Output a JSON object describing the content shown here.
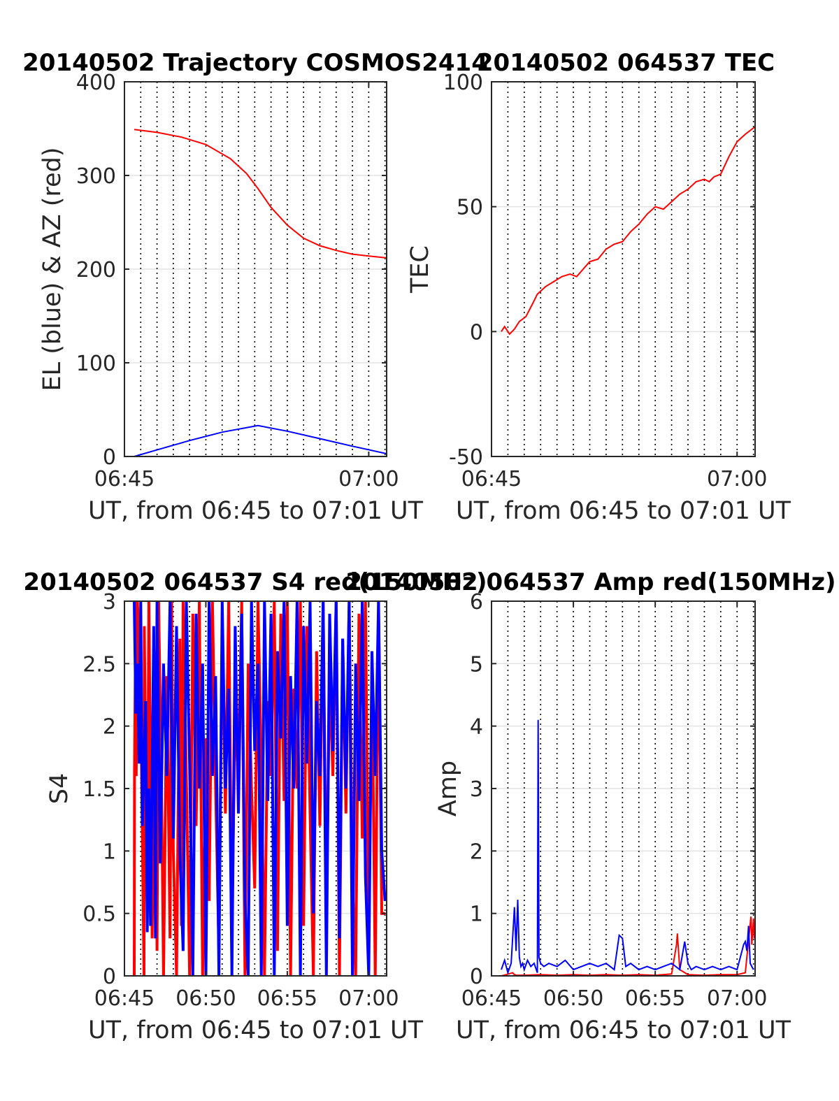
{
  "chart_data": [
    {
      "type": "line",
      "title": "20140502 Trajectory COSMOS2414",
      "xlabel": "UT, from 06:45 to 07:01 UT",
      "ylabel": "EL (blue) & AZ (red)",
      "xlim": [
        0,
        16.1
      ],
      "ylim": [
        0,
        400
      ],
      "yticks": [
        0,
        100,
        200,
        300,
        400
      ],
      "ytick_labels": [
        "0",
        "100",
        "200",
        "300",
        "400"
      ],
      "xticks": [
        0,
        15
      ],
      "xtick_labels": [
        "06:45",
        "07:00"
      ],
      "minute_gridlines": true,
      "series": [
        {
          "color": "#ff0000",
          "x": [
            0.6,
            2,
            3.5,
            5,
            6.5,
            7.5,
            8.2,
            9,
            10,
            11,
            12,
            13,
            14,
            15,
            16.1
          ],
          "values": [
            349,
            346,
            341,
            333,
            318,
            302,
            286,
            266,
            247,
            233,
            225,
            220,
            216,
            214,
            212
          ]
        },
        {
          "color": "#0000ff",
          "x": [
            0.6,
            2,
            4,
            6,
            8.2,
            10,
            12,
            14,
            16.1
          ],
          "values": [
            0,
            7,
            17,
            26,
            33,
            27,
            19,
            11,
            3
          ]
        }
      ]
    },
    {
      "type": "line",
      "title": "20140502 064537 TEC",
      "xlabel": "UT, from 06:45 to 07:01 UT",
      "ylabel": "TEC",
      "xlim": [
        0,
        16.1
      ],
      "ylim": [
        -50,
        100
      ],
      "yticks": [
        -50,
        0,
        50,
        100
      ],
      "ytick_labels": [
        "-50",
        "0",
        "50",
        "100"
      ],
      "xticks": [
        0,
        15
      ],
      "xtick_labels": [
        "06:45",
        "07:00"
      ],
      "minute_gridlines": true,
      "series": [
        {
          "color": "#ff0000",
          "x": [
            0.6,
            0.8,
            1.1,
            1.4,
            1.7,
            2.1,
            2.5,
            2.8,
            3.3,
            3.8,
            4.3,
            4.8,
            5.2,
            5.6,
            6.0,
            6.5,
            7.0,
            7.5,
            8.0,
            8.5,
            9.0,
            9.5,
            10.0,
            10.5,
            11.0,
            11.5,
            12.0,
            12.5,
            13.0,
            13.3,
            13.6,
            14.0,
            14.5,
            15.0,
            15.5,
            16.1
          ],
          "values": [
            0,
            2,
            -1,
            1,
            4,
            6,
            11,
            15,
            18,
            20,
            22,
            23,
            22,
            25,
            28,
            29,
            33,
            35,
            36,
            40,
            43,
            47,
            50,
            49,
            52,
            55,
            57,
            60,
            61,
            60,
            62,
            63,
            70,
            76,
            79,
            82
          ]
        }
      ]
    },
    {
      "type": "line",
      "title": "20140502 064537 S4 red(150MHz)",
      "xlabel": "UT, from 06:45 to 07:01 UT",
      "ylabel": "S4",
      "xlim": [
        0,
        16.1
      ],
      "ylim": [
        0,
        3
      ],
      "yticks": [
        0,
        0.5,
        1,
        1.5,
        2,
        2.5,
        3
      ],
      "ytick_labels": [
        "0",
        "0.5",
        "1",
        "1.5",
        "2",
        "2.5",
        "3"
      ],
      "xticks": [
        0,
        5,
        10,
        15
      ],
      "xtick_labels": [
        "06:45",
        "06:50",
        "06:55",
        "07:00"
      ],
      "minute_gridlines": true,
      "series": [
        {
          "color": "#ff0000",
          "x": [
            0.6,
            0.62,
            0.7,
            0.72,
            0.8,
            1.0,
            1.2,
            1.22,
            1.4,
            1.5,
            1.7,
            1.9,
            2.0,
            2.1,
            2.3,
            2.4,
            2.6,
            2.8,
            2.9,
            3.0,
            3.2,
            3.4,
            3.5,
            3.6,
            3.8,
            4.0,
            4.2,
            4.4,
            4.6,
            4.8,
            5.0,
            5.2,
            5.4,
            5.6,
            5.8,
            6.0,
            6.2,
            6.4,
            6.6,
            6.8,
            7.0,
            7.2,
            7.4,
            7.6,
            7.8,
            8.0,
            8.2,
            8.4,
            8.6,
            8.8,
            9.0,
            9.2,
            9.4,
            9.6,
            9.8,
            10.0,
            10.2,
            10.4,
            10.6,
            10.8,
            11.0,
            11.2,
            11.4,
            11.6,
            11.8,
            12.0,
            12.2,
            12.4,
            12.6,
            12.8,
            13.0,
            13.2,
            13.4,
            13.6,
            13.8,
            14.0,
            14.2,
            14.4,
            14.6,
            14.8,
            15.0,
            15.2,
            15.4,
            15.6,
            15.8,
            16.0
          ],
          "values": [
            0,
            1.65,
            3,
            1.6,
            3,
            2.2,
            0,
            2.8,
            0.5,
            3,
            0.3,
            2.6,
            0.2,
            3,
            1.2,
            0,
            2.4,
            0.3,
            3,
            1.0,
            0,
            2.7,
            0.4,
            3,
            1.6,
            0,
            2.9,
            1.2,
            3,
            0,
            1.9,
            0.6,
            3,
            1.5,
            0.2,
            2.8,
            1.3,
            3,
            0.4,
            2.1,
            1.6,
            3,
            0,
            2.5,
            1.5,
            0.7,
            3,
            1.7,
            0,
            2.2,
            1.6,
            3,
            0.2,
            2.9,
            1.4,
            3,
            0,
            2.3,
            1.5,
            3,
            0.4,
            2.8,
            1.3,
            0,
            2.6,
            1.2,
            3,
            0.5,
            2.4,
            1.6,
            3,
            0,
            2.7,
            1.3,
            3,
            0.8,
            0,
            2.9,
            1.1,
            3,
            0.3,
            2.5,
            0,
            3,
            0.5,
            0.5
          ]
        },
        {
          "color": "#0000ff",
          "x": [
            0.6,
            0.7,
            0.8,
            0.9,
            1.0,
            1.1,
            1.3,
            1.4,
            1.5,
            1.6,
            1.8,
            1.9,
            2.0,
            2.2,
            2.4,
            2.6,
            2.8,
            3.0,
            3.2,
            3.4,
            3.6,
            3.8,
            4.0,
            4.2,
            4.4,
            4.6,
            4.8,
            5.0,
            5.2,
            5.4,
            5.6,
            5.8,
            6.0,
            6.2,
            6.4,
            6.6,
            6.8,
            7.0,
            7.2,
            7.4,
            7.6,
            7.8,
            8.0,
            8.2,
            8.4,
            8.6,
            8.8,
            9.0,
            9.2,
            9.4,
            9.6,
            9.8,
            10.0,
            10.2,
            10.4,
            10.6,
            10.8,
            11.0,
            11.2,
            11.4,
            11.6,
            11.8,
            12.0,
            12.2,
            12.4,
            12.6,
            12.8,
            13.0,
            13.2,
            13.4,
            13.6,
            13.8,
            14.0,
            14.2,
            14.4,
            14.6,
            14.8,
            15.0,
            15.2,
            15.4,
            15.6,
            15.8,
            16.0
          ],
          "values": [
            3,
            2.1,
            2.5,
            1.7,
            3,
            1.2,
            2.2,
            0.35,
            1.5,
            0.4,
            2.8,
            0.3,
            3,
            0.9,
            2.5,
            1.6,
            3,
            1.1,
            2.8,
            1.0,
            0.2,
            3,
            1.7,
            0,
            2.9,
            1.5,
            2.5,
            0,
            3,
            1.6,
            2.4,
            0,
            3,
            1.5,
            2.3,
            0,
            2.8,
            1.3,
            2.9,
            0.6,
            0,
            3,
            1.8,
            2.5,
            0,
            3,
            1.4,
            2.9,
            0,
            2.6,
            1.9,
            3,
            0.4,
            2.4,
            1.5,
            3,
            0,
            2.8,
            1.7,
            3,
            0.5,
            2.2,
            1.6,
            3,
            0,
            2.9,
            1.8,
            3,
            0.3,
            2.7,
            1.5,
            3,
            0,
            2.5,
            1.4,
            3,
            0.8,
            0,
            2.6,
            1.6,
            3,
            1.0,
            0.6
          ]
        }
      ]
    },
    {
      "type": "line",
      "title": "20140502 064537 Amp red(150MHz)",
      "xlabel": "UT, from 06:45 to 07:01 UT",
      "ylabel": "Amp",
      "xlim": [
        0,
        16.1
      ],
      "ylim": [
        0,
        6
      ],
      "yticks": [
        0,
        1,
        2,
        3,
        4,
        5,
        6
      ],
      "ytick_labels": [
        "0",
        "1",
        "2",
        "3",
        "4",
        "5",
        "6"
      ],
      "xticks": [
        0,
        5,
        10,
        15
      ],
      "xtick_labels": [
        "06:45",
        "06:50",
        "06:55",
        "07:00"
      ],
      "minute_gridlines": true,
      "series": [
        {
          "color": "#ff0000",
          "x": [
            0.6,
            0.9,
            1.3,
            1.35,
            1.5,
            2.0,
            3.0,
            4.0,
            5.0,
            6.0,
            7.0,
            8.0,
            9.0,
            10.0,
            11.0,
            11.3,
            11.35,
            11.5,
            12.0,
            13.0,
            14.0,
            15.0,
            15.5,
            15.85,
            15.9,
            16.0,
            16.05
          ],
          "values": [
            0,
            0.02,
            0.05,
            0.03,
            0.01,
            0.01,
            0.02,
            0.01,
            0.02,
            0.01,
            0.02,
            0.01,
            0.02,
            0.01,
            0.03,
            0.5,
            0.68,
            0.1,
            0.02,
            0.01,
            0.02,
            0.02,
            0.05,
            0.95,
            0.5,
            0.92,
            0.6
          ]
        },
        {
          "color": "#0000ff",
          "x": [
            0.6,
            0.8,
            1.0,
            1.2,
            1.4,
            1.5,
            1.6,
            1.7,
            1.8,
            1.9,
            2.0,
            2.2,
            2.4,
            2.6,
            2.8,
            2.85,
            2.9,
            3.0,
            3.2,
            3.5,
            4.0,
            4.5,
            5.0,
            5.5,
            6.0,
            6.5,
            7.0,
            7.5,
            7.8,
            8.0,
            8.2,
            8.5,
            9.0,
            9.5,
            10.0,
            10.5,
            11.0,
            11.5,
            11.8,
            12.0,
            12.2,
            12.5,
            13.0,
            13.5,
            14.0,
            14.5,
            15.0,
            15.2,
            15.4,
            15.5,
            15.6,
            15.7,
            15.8,
            16.0
          ],
          "values": [
            0.1,
            0.25,
            0.05,
            0.2,
            1.1,
            0.4,
            1.22,
            0.3,
            0.15,
            0.2,
            0.1,
            0.25,
            0.15,
            0.2,
            0.05,
            4.1,
            0.3,
            0.2,
            0.15,
            0.2,
            0.15,
            0.25,
            0.1,
            0.15,
            0.2,
            0.15,
            0.2,
            0.1,
            0.65,
            0.6,
            0.15,
            0.2,
            0.1,
            0.15,
            0.1,
            0.15,
            0.2,
            0.1,
            0.55,
            0.2,
            0.1,
            0.15,
            0.1,
            0.15,
            0.1,
            0.15,
            0.1,
            0.3,
            0.5,
            0.55,
            0.4,
            0.8,
            0.2,
            0.1
          ]
        }
      ]
    }
  ]
}
